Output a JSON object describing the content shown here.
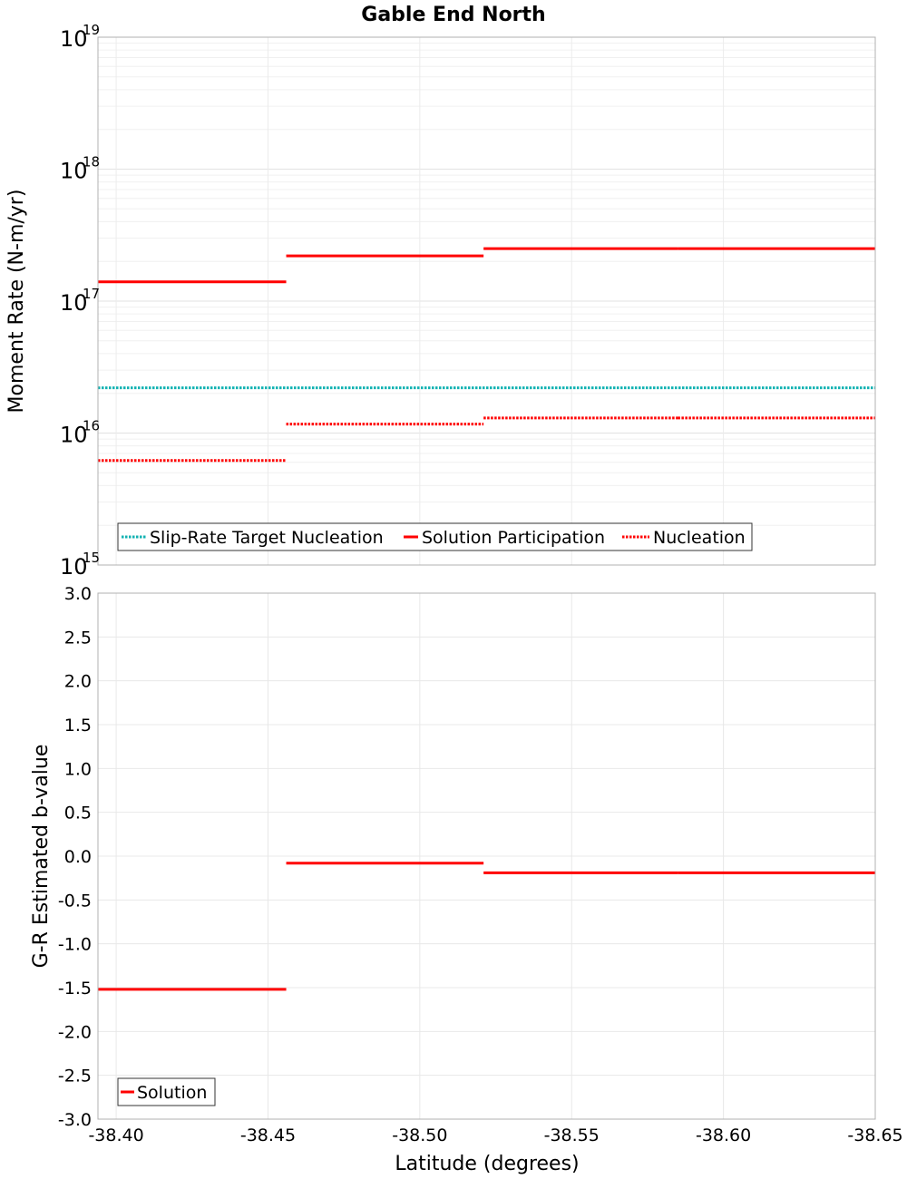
{
  "chart_data": [
    {
      "type": "line",
      "title": "Gable End North",
      "xlabel": "",
      "ylabel": "Moment Rate (N-m/yr)",
      "yscale": "log",
      "xlim": [
        -38.394,
        -38.65
      ],
      "ylim": [
        1000000000000000.0,
        1e+19
      ],
      "x_reversed": true,
      "grid": true,
      "legend_position": "bottom-left",
      "y_tick_labels": [
        {
          "base": "10",
          "exp": "15",
          "value": 1000000000000000.0
        },
        {
          "base": "10",
          "exp": "16",
          "value": 1e+16
        },
        {
          "base": "10",
          "exp": "17",
          "value": 1e+17
        },
        {
          "base": "10",
          "exp": "18",
          "value": 1e+18
        },
        {
          "base": "10",
          "exp": "19",
          "value": 1e+19
        }
      ],
      "series": [
        {
          "name": "Slip-Rate Target Nucleation",
          "color": "#11b2b2",
          "style": "dotted",
          "segments": [
            {
              "x": [
                -38.394,
                -38.65
              ],
              "y": 2.2e+16
            }
          ]
        },
        {
          "name": "Solution Participation",
          "color": "#ff0000",
          "style": "solid",
          "segments": [
            {
              "x": [
                -38.394,
                -38.456
              ],
              "y": 1.4e+17
            },
            {
              "x": [
                -38.456,
                -38.521
              ],
              "y": 2.2e+17
            },
            {
              "x": [
                -38.521,
                -38.585
              ],
              "y": 2.5e+17
            },
            {
              "x": [
                -38.585,
                -38.65
              ],
              "y": 2.5e+17
            }
          ]
        },
        {
          "name": "Nucleation",
          "color": "#ff0000",
          "style": "dotted",
          "segments": [
            {
              "x": [
                -38.394,
                -38.456
              ],
              "y": 6200000000000000.0
            },
            {
              "x": [
                -38.456,
                -38.521
              ],
              "y": 1.17e+16
            },
            {
              "x": [
                -38.521,
                -38.585
              ],
              "y": 1.3e+16
            },
            {
              "x": [
                -38.585,
                -38.65
              ],
              "y": 1.3e+16
            }
          ]
        }
      ]
    },
    {
      "type": "line",
      "title": "",
      "xlabel": "Latitude (degrees)",
      "ylabel": "G-R Estimated b-value",
      "xlim": [
        -38.394,
        -38.65
      ],
      "ylim": [
        -3.0,
        3.0
      ],
      "x_reversed": true,
      "grid": true,
      "legend_position": "bottom-left",
      "x_ticks": [
        {
          "value": -38.4,
          "label": "-38.40"
        },
        {
          "value": -38.45,
          "label": "-38.45"
        },
        {
          "value": -38.5,
          "label": "-38.50"
        },
        {
          "value": -38.55,
          "label": "-38.55"
        },
        {
          "value": -38.6,
          "label": "-38.60"
        },
        {
          "value": -38.65,
          "label": "-38.65"
        }
      ],
      "y_ticks": [
        {
          "value": 3.0,
          "label": "3.0"
        },
        {
          "value": 2.5,
          "label": "2.5"
        },
        {
          "value": 2.0,
          "label": "2.0"
        },
        {
          "value": 1.5,
          "label": "1.5"
        },
        {
          "value": 1.0,
          "label": "1.0"
        },
        {
          "value": 0.5,
          "label": "0.5"
        },
        {
          "value": 0.0,
          "label": "0.0"
        },
        {
          "value": -0.5,
          "label": "-0.5"
        },
        {
          "value": -1.0,
          "label": "-1.0"
        },
        {
          "value": -1.5,
          "label": "-1.5"
        },
        {
          "value": -2.0,
          "label": "-2.0"
        },
        {
          "value": -2.5,
          "label": "-2.5"
        },
        {
          "value": -3.0,
          "label": "-3.0"
        }
      ],
      "series": [
        {
          "name": "Solution",
          "color": "#ff0000",
          "style": "solid",
          "segments": [
            {
              "x": [
                -38.394,
                -38.456
              ],
              "y": -1.52
            },
            {
              "x": [
                -38.456,
                -38.521
              ],
              "y": -0.08
            },
            {
              "x": [
                -38.521,
                -38.585
              ],
              "y": -0.19
            },
            {
              "x": [
                -38.585,
                -38.65
              ],
              "y": -0.19
            }
          ]
        }
      ]
    }
  ]
}
